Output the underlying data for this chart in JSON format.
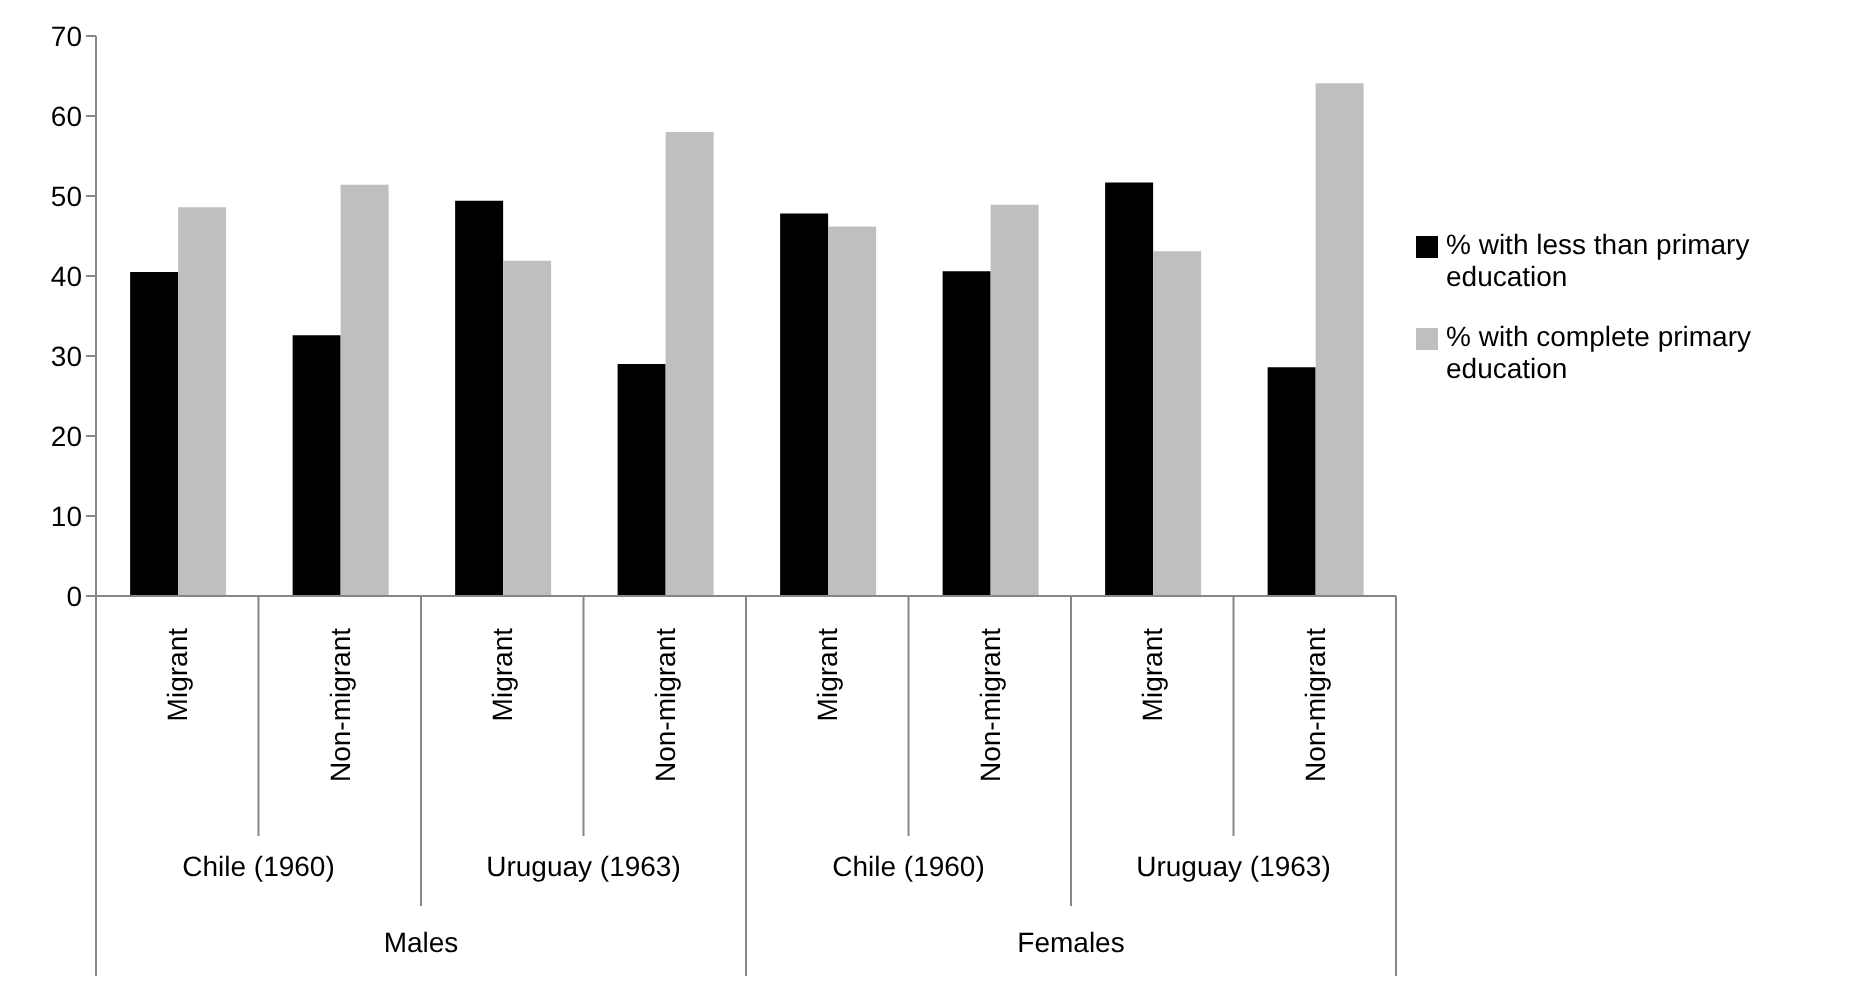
{
  "chart_data": {
    "type": "bar",
    "categories": [
      "Migrant",
      "Non-migrant",
      "Migrant",
      "Non-migrant",
      "Migrant",
      "Non-migrant",
      "Migrant",
      "Non-migrant"
    ],
    "series": [
      {
        "name": "% with less than primary education",
        "color": "#000000",
        "values": [
          40.5,
          32.6,
          49.4,
          29.0,
          47.8,
          40.6,
          51.7,
          28.6
        ]
      },
      {
        "name": "% with complete primary education",
        "color": "#bfbfbf",
        "values": [
          48.6,
          51.4,
          41.9,
          58.0,
          46.2,
          48.9,
          43.1,
          64.1
        ]
      }
    ],
    "annotations": [
      "Chile (1960)",
      "Uruguay (1963)",
      "Chile (1960)",
      "Uruguay (1963)",
      "Males",
      "Females"
    ],
    "ylim": [
      0,
      70
    ],
    "yticks": [
      0,
      10,
      20,
      30,
      40,
      50,
      60,
      70
    ],
    "grid": false,
    "legend": "right"
  }
}
